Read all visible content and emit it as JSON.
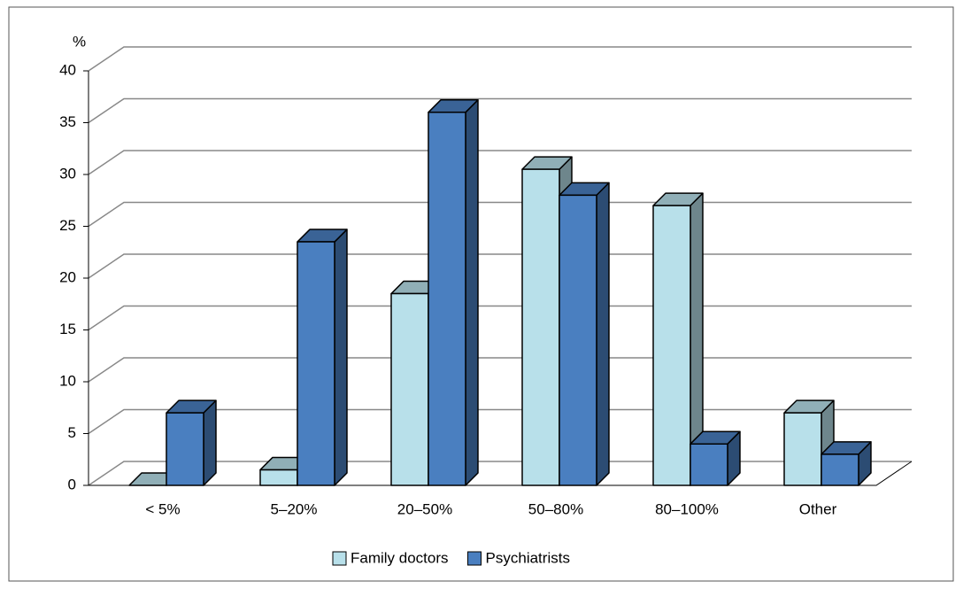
{
  "chart_data": {
    "type": "bar",
    "y_label": "%",
    "categories": [
      "< 5%",
      "5–20%",
      "20–50%",
      "50–80%",
      "80–100%",
      "Other"
    ],
    "series": [
      {
        "name": "Family doctors",
        "color": "#b8e0ea",
        "values": [
          0,
          1.5,
          18.5,
          30.5,
          27,
          7
        ]
      },
      {
        "name": "Psychiatrists",
        "color": "#4a7fc0",
        "values": [
          7,
          23.5,
          36,
          28,
          4,
          3
        ]
      }
    ],
    "ylim": [
      0,
      40
    ],
    "yticks": [
      0,
      5,
      10,
      15,
      20,
      25,
      30,
      35,
      40
    ],
    "grid": true,
    "legend": "bottom"
  }
}
